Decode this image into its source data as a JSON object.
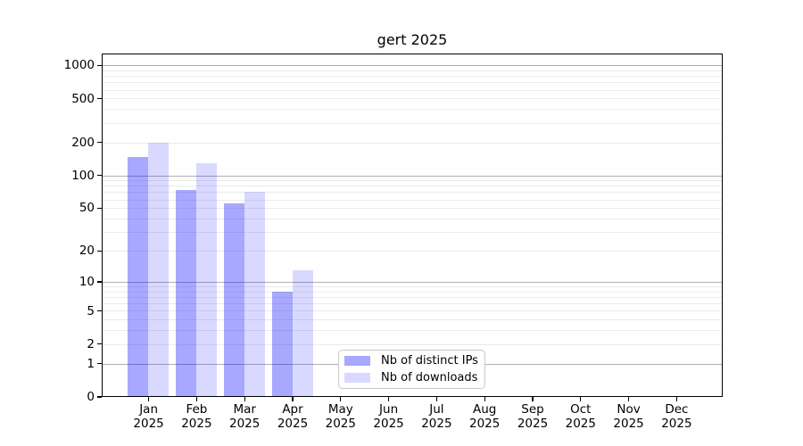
{
  "chart_data": {
    "type": "bar",
    "title": "gert 2025",
    "categories": [
      "Jan 2025",
      "Feb 2025",
      "Mar 2025",
      "Apr 2025",
      "May 2025",
      "Jun 2025",
      "Jul 2025",
      "Aug 2025",
      "Sep 2025",
      "Oct 2025",
      "Nov 2025",
      "Dec 2025"
    ],
    "series": [
      {
        "name": "Nb of distinct IPs",
        "color": "rgba(0,0,255,0.34)",
        "values": [
          146,
          74,
          55,
          8,
          null,
          null,
          null,
          null,
          null,
          null,
          null,
          null
        ]
      },
      {
        "name": "Nb of downloads",
        "color": "rgba(0,0,255,0.15)",
        "values": [
          200,
          130,
          70,
          13,
          null,
          null,
          null,
          null,
          null,
          null,
          null,
          null
        ]
      }
    ],
    "xlabel": "",
    "ylabel": "",
    "yscale": "log1p",
    "ylim": [
      0,
      1282
    ],
    "yticks": [
      0,
      1,
      2,
      5,
      10,
      20,
      50,
      100,
      200,
      500,
      1000
    ],
    "ytick_labels": [
      "0",
      "1",
      "2",
      "5",
      "10",
      "20",
      "50",
      "100",
      "200",
      "500",
      "1000"
    ],
    "major_gridlines": [
      1,
      10,
      100,
      1000
    ],
    "minor_gridlines": [
      2,
      3,
      4,
      5,
      6,
      7,
      8,
      9,
      20,
      30,
      40,
      50,
      60,
      70,
      80,
      90,
      200,
      300,
      400,
      500,
      600,
      700,
      800,
      900
    ],
    "grid": true,
    "legend": {
      "position": "lower center",
      "labels": [
        "Nb of distinct IPs",
        "Nb of downloads"
      ]
    }
  },
  "colors": {
    "major_grid": "#b0b0b0",
    "minor_grid": "#ebebeb",
    "spine": "#000000",
    "background": "#ffffff",
    "bar_dark": "#a9a9fa",
    "bar_light": "#d9d9fb"
  }
}
